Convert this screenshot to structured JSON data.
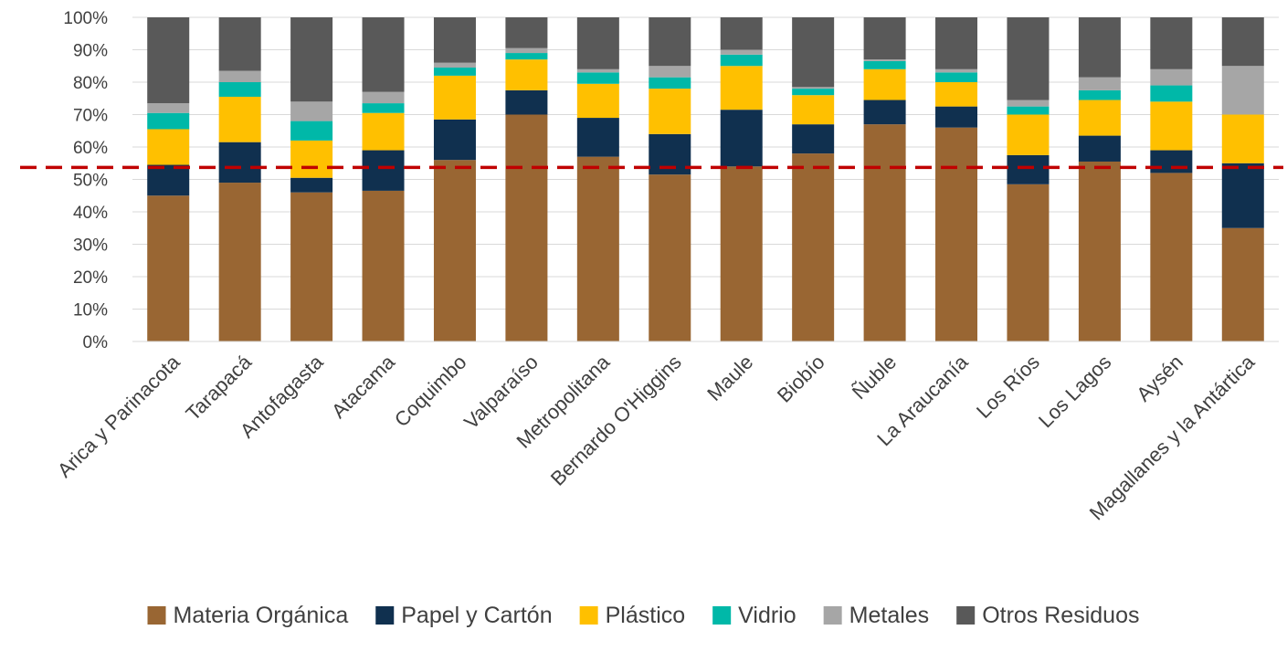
{
  "chart_data": {
    "type": "bar",
    "stacked": true,
    "percent_stacked": true,
    "title": "",
    "xlabel": "",
    "ylabel": "",
    "ylim": [
      0,
      100
    ],
    "yticks": [
      "0%",
      "10%",
      "20%",
      "30%",
      "40%",
      "50%",
      "60%",
      "70%",
      "80%",
      "90%",
      "100%"
    ],
    "grid": "horizontal",
    "legend_position": "bottom",
    "reference_line": {
      "value": 53.7,
      "style": "dashed",
      "color": "#C00000"
    },
    "categories": [
      "Arica y Parinacota",
      "Tarapacá",
      "Antofagasta",
      "Atacama",
      "Coquimbo",
      "Valparaíso",
      "Metropolitana",
      "Bernardo O'Higgins",
      "Maule",
      "Biobío",
      "Ñuble",
      "La Araucanía",
      "Los Ríos",
      "Los Lagos",
      "Aysén",
      "Magallanes y la Antártica"
    ],
    "series": [
      {
        "name": "Materia Orgánica",
        "color": "#996633",
        "values": [
          45,
          49,
          46,
          46.5,
          56,
          70,
          57,
          51.5,
          54,
          58,
          67,
          66,
          48.5,
          55.5,
          52,
          35
        ]
      },
      {
        "name": "Papel y Cartón",
        "color": "#10304F",
        "values": [
          9.5,
          12.5,
          4.5,
          12.5,
          12.5,
          7.5,
          12,
          12.5,
          17.5,
          9,
          7.5,
          6.5,
          9,
          8,
          7,
          20
        ]
      },
      {
        "name": "Plástico",
        "color": "#FFC000",
        "values": [
          11,
          14,
          11.5,
          11.5,
          13.5,
          9.5,
          10.5,
          14,
          13.5,
          9,
          9.5,
          7.5,
          12.5,
          11,
          15,
          15
        ]
      },
      {
        "name": "Vidrio",
        "color": "#00B8A8",
        "values": [
          5,
          4.5,
          6,
          3,
          2.5,
          2,
          3.5,
          3.5,
          3.5,
          2,
          2.5,
          3,
          2.5,
          3,
          5,
          0
        ]
      },
      {
        "name": "Metales",
        "color": "#A6A6A6",
        "values": [
          3,
          3.5,
          6,
          3.5,
          1.5,
          1.5,
          1,
          3.5,
          1.5,
          0.5,
          0.5,
          1,
          2,
          4,
          5,
          15
        ]
      },
      {
        "name": "Otros Residuos",
        "color": "#595959",
        "values": [
          26.5,
          16.5,
          26,
          23,
          14,
          9.5,
          16,
          15,
          10,
          21.5,
          13,
          16,
          25.5,
          18.5,
          16,
          15
        ]
      }
    ]
  }
}
